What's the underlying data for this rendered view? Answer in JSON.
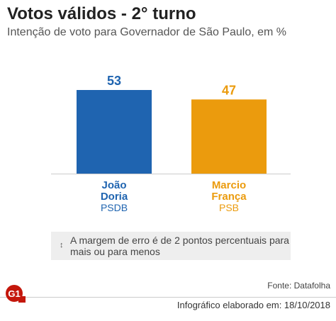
{
  "title": "Votos válidos - 2° turno",
  "subtitle": "Intenção de voto para Governador de São Paulo, em %",
  "chart_data": {
    "type": "bar",
    "categories": [
      "João Doria",
      "Marcio França"
    ],
    "values": [
      53,
      47
    ],
    "parties": [
      "PSDB",
      "PSB"
    ],
    "category_lines": [
      [
        "João",
        "Doria"
      ],
      [
        "Marcio",
        "França"
      ]
    ],
    "colors": [
      "#1f64b0",
      "#eb9b0d"
    ],
    "ylim": [
      0,
      53
    ],
    "grid": false
  },
  "note": {
    "icon": "up-down-arrow-icon",
    "text": "A margem de erro é de 2 pontos percentuais para mais ou para menos"
  },
  "source": "Fonte: Datafolha",
  "credit": "Infográfico elaborado em: 18/10/2018",
  "logo": {
    "text": "G1",
    "color": "#c4170c"
  }
}
